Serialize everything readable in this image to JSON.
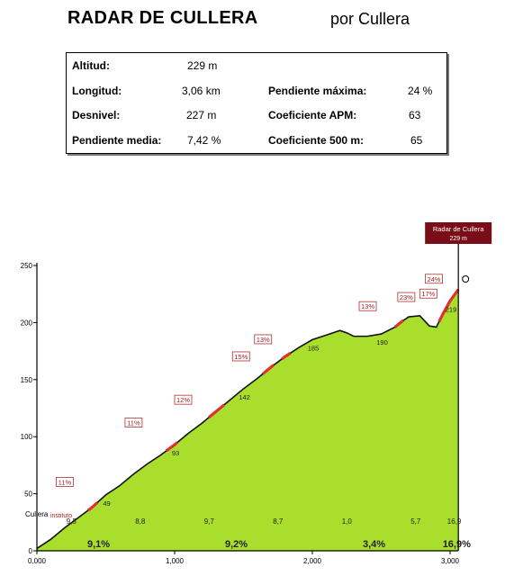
{
  "header": {
    "title": "RADAR DE CULLERA",
    "subtitle": "por Cullera"
  },
  "stats": {
    "altitud_label": "Altitud:",
    "altitud_value": "229 m",
    "longitud_label": "Longitud:",
    "longitud_value": "3,06 km",
    "desnivel_label": "Desnivel:",
    "desnivel_value": "227 m",
    "pendiente_media_label": "Pendiente media:",
    "pendiente_media_value": "7,42 %",
    "pendiente_maxima_label": "Pendiente máxima:",
    "pendiente_maxima_value": "24 %",
    "coef_apm_label": "Coeficiente APM:",
    "coef_apm_value": "63",
    "coef_500_label": "Coeficiente 500 m:",
    "coef_500_value": "65"
  },
  "chart_data": {
    "type": "area",
    "summit_label": {
      "name": "Radar de Cullera",
      "altitude": "229 m"
    },
    "start_labels": [
      "Cullera",
      "instituto"
    ],
    "x_ticks": [
      "0,000",
      "1,000",
      "2,000",
      "3,000"
    ],
    "y_ticks": [
      "0",
      "50",
      "100",
      "150",
      "200",
      "250"
    ],
    "xlim": [
      0,
      3.0
    ],
    "ylim": [
      0,
      250
    ],
    "profile": [
      {
        "x": 0.0,
        "y": 2
      },
      {
        "x": 0.1,
        "y": 10
      },
      {
        "x": 0.2,
        "y": 20
      },
      {
        "x": 0.3,
        "y": 29
      },
      {
        "x": 0.4,
        "y": 38
      },
      {
        "x": 0.5,
        "y": 49
      },
      {
        "x": 0.6,
        "y": 57
      },
      {
        "x": 0.7,
        "y": 67
      },
      {
        "x": 0.8,
        "y": 76
      },
      {
        "x": 0.9,
        "y": 84
      },
      {
        "x": 1.0,
        "y": 93
      },
      {
        "x": 1.1,
        "y": 103
      },
      {
        "x": 1.2,
        "y": 112
      },
      {
        "x": 1.3,
        "y": 122
      },
      {
        "x": 1.4,
        "y": 132
      },
      {
        "x": 1.5,
        "y": 142
      },
      {
        "x": 1.6,
        "y": 151
      },
      {
        "x": 1.7,
        "y": 161
      },
      {
        "x": 1.8,
        "y": 170
      },
      {
        "x": 1.9,
        "y": 178
      },
      {
        "x": 2.0,
        "y": 185
      },
      {
        "x": 2.1,
        "y": 189
      },
      {
        "x": 2.2,
        "y": 193
      },
      {
        "x": 2.25,
        "y": 191
      },
      {
        "x": 2.3,
        "y": 188
      },
      {
        "x": 2.4,
        "y": 188
      },
      {
        "x": 2.5,
        "y": 190
      },
      {
        "x": 2.6,
        "y": 196
      },
      {
        "x": 2.65,
        "y": 201
      },
      {
        "x": 2.7,
        "y": 205
      },
      {
        "x": 2.78,
        "y": 206
      },
      {
        "x": 2.85,
        "y": 197
      },
      {
        "x": 2.9,
        "y": 196
      },
      {
        "x": 2.95,
        "y": 208
      },
      {
        "x": 3.0,
        "y": 219
      },
      {
        "x": 3.06,
        "y": 229
      }
    ],
    "point_labels": [
      {
        "x": 0.5,
        "y": 49,
        "label": "49"
      },
      {
        "x": 1.0,
        "y": 93,
        "label": "93"
      },
      {
        "x": 1.5,
        "y": 142,
        "label": "142"
      },
      {
        "x": 2.0,
        "y": 185,
        "label": "185"
      },
      {
        "x": 2.5,
        "y": 190,
        "label": "190"
      },
      {
        "x": 3.0,
        "y": 219,
        "label": "219"
      }
    ],
    "segment_gradients": [
      {
        "x": 0.25,
        "label": "9,5"
      },
      {
        "x": 0.75,
        "label": "8,8"
      },
      {
        "x": 1.25,
        "label": "9,7"
      },
      {
        "x": 1.75,
        "label": "8,7"
      },
      {
        "x": 2.25,
        "label": "1,0"
      },
      {
        "x": 2.75,
        "label": "5,7"
      },
      {
        "x": 3.03,
        "label": "16,9"
      }
    ],
    "km_gradients": [
      {
        "x": 0.5,
        "label": "9,1%"
      },
      {
        "x": 1.5,
        "label": "9,2%"
      },
      {
        "x": 2.5,
        "label": "3,4%"
      },
      {
        "x": 3.1,
        "label": "16,9%"
      }
    ],
    "steep_segments": [
      {
        "x0": 0.37,
        "x1": 0.44,
        "label": "11%",
        "lx": 0.14,
        "ly": 58
      },
      {
        "x0": 0.94,
        "x1": 1.02,
        "label": "11%",
        "lx": 0.64,
        "ly": 110
      },
      {
        "x0": 1.25,
        "x1": 1.36,
        "label": "12%",
        "lx": 1.0,
        "ly": 130
      },
      {
        "x0": 1.64,
        "x1": 1.72,
        "label": "15%",
        "lx": 1.42,
        "ly": 168
      },
      {
        "x0": 1.78,
        "x1": 1.84,
        "label": "13%",
        "lx": 1.58,
        "ly": 183
      },
      {
        "x0": 2.6,
        "x1": 2.66,
        "label": "13%",
        "lx": 2.34,
        "ly": 212
      },
      {
        "x0": 2.92,
        "x1": 2.96,
        "label": "23%",
        "lx": 2.62,
        "ly": 220
      },
      {
        "x0": 2.96,
        "x1": 3.0,
        "label": "17%",
        "lx": 2.78,
        "ly": 223
      },
      {
        "x0": 3.0,
        "x1": 3.06,
        "label": "24%",
        "lx": 2.82,
        "ly": 236
      }
    ],
    "colors": {
      "fill": "#aade2c",
      "steep": "#e03030",
      "label_border": "#b03030",
      "summit_box": "#7a0e18"
    }
  }
}
